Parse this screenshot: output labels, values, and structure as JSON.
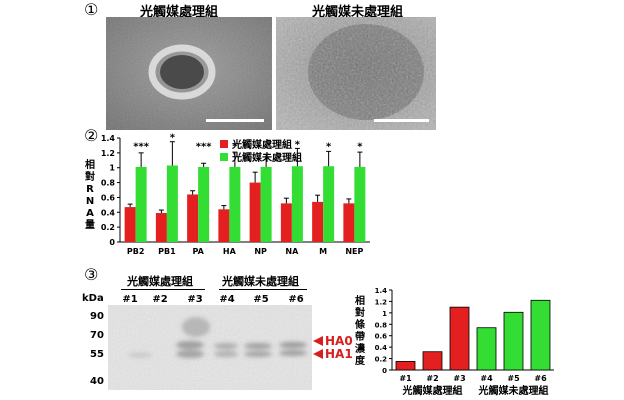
{
  "panel1": {
    "number": "①",
    "label_treated": "光觸媒處理組",
    "label_untreated": "光觸媒未處理組"
  },
  "chart_data": [
    {
      "panel_number": "②",
      "type": "bar",
      "categories": [
        "PB2",
        "PB1",
        "PA",
        "HA",
        "NP",
        "NA",
        "M",
        "NEP"
      ],
      "series": [
        {
          "name": "光觸媒處理組",
          "color": "#e3201f",
          "values": [
            0.47,
            0.39,
            0.64,
            0.44,
            0.8,
            0.52,
            0.54,
            0.52
          ],
          "errors": [
            0.04,
            0.04,
            0.05,
            0.05,
            0.14,
            0.07,
            0.09,
            0.06
          ]
        },
        {
          "name": "光觸媒未處理組",
          "color": "#33dd33",
          "values": [
            1.01,
            1.03,
            1.01,
            1.01,
            1.01,
            1.02,
            1.02,
            1.01
          ],
          "errors": [
            0.19,
            0.32,
            0.05,
            0.2,
            0.17,
            0.24,
            0.2,
            0.2
          ]
        }
      ],
      "significance": [
        "***",
        "*",
        "***",
        "*",
        "",
        "*",
        "*",
        "*"
      ],
      "ylabel": "相對RNA量",
      "ylim": [
        0,
        1.4
      ],
      "yticks": [
        "0",
        "0.2",
        "0.4",
        "0.6",
        "0.8",
        "1",
        "1.2",
        "1.4"
      ],
      "legend_position": "top-right"
    },
    {
      "type": "bar",
      "categories": [
        "#1",
        "#2",
        "#3",
        "#4",
        "#5",
        "#6"
      ],
      "values": [
        0.15,
        0.32,
        1.1,
        0.74,
        1.01,
        1.22
      ],
      "colors": [
        "#e3201f",
        "#e3201f",
        "#e3201f",
        "#33dd33",
        "#33dd33",
        "#33dd33"
      ],
      "ylabel": "相對條帶濃度",
      "ylim": [
        0,
        1.4
      ],
      "yticks": [
        "0",
        "0.2",
        "0.4",
        "0.6",
        "0.8",
        "1",
        "1.2",
        "1.4"
      ],
      "group_labels": [
        "光觸媒處理組",
        "光觸媒未處理組"
      ]
    }
  ],
  "panel3": {
    "number": "③",
    "label_treated": "光觸媒處理組",
    "label_untreated": "光觸媒未處理組",
    "lanes": [
      "#1",
      "#2",
      "#3",
      "#4",
      "#5",
      "#6"
    ],
    "kda_label": "kDa",
    "markers": [
      "90",
      "70",
      "55",
      "40"
    ],
    "band_ha0": "HA0",
    "band_ha1": "HA1"
  }
}
